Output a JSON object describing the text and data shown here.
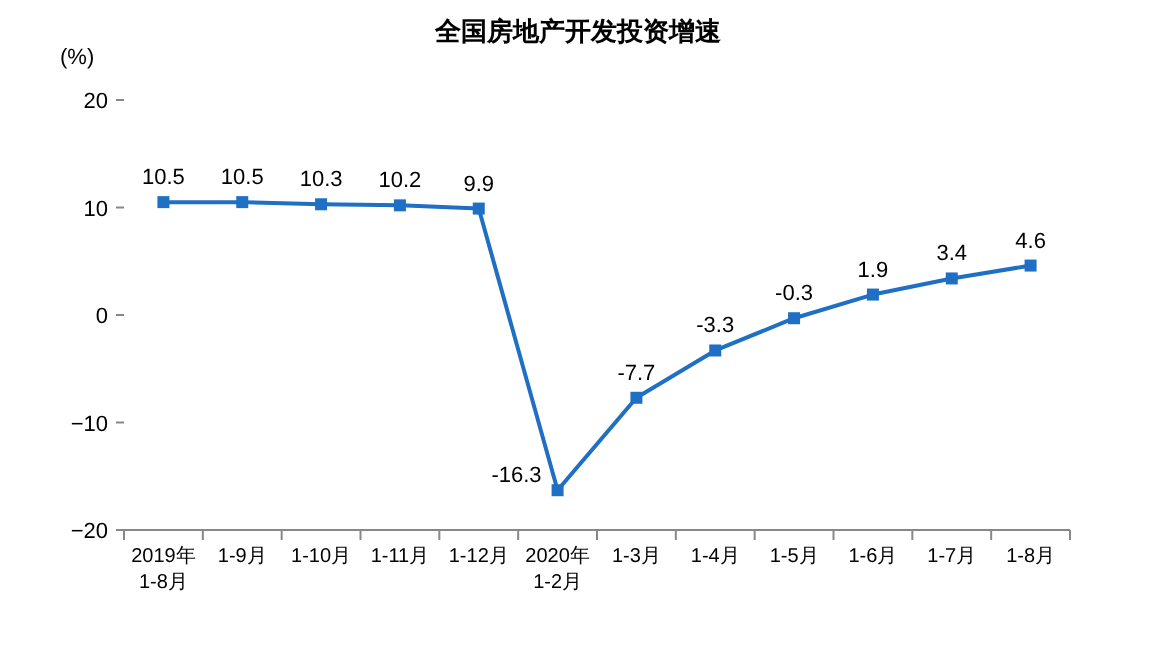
{
  "chart_data": {
    "type": "line",
    "title": "全国房地产开发投资增速",
    "ylabel": "(%)",
    "categories": [
      "2019年\n1-8月",
      "1-9月",
      "1-10月",
      "1-11月",
      "1-12月",
      "2020年\n1-2月",
      "1-3月",
      "1-4月",
      "1-5月",
      "1-6月",
      "1-7月",
      "1-8月"
    ],
    "series": [
      {
        "color": "#1f6fc4",
        "values": [
          10.5,
          10.5,
          10.3,
          10.2,
          9.9,
          -16.3,
          -7.7,
          -3.3,
          -0.3,
          1.9,
          3.4,
          4.6
        ]
      }
    ],
    "ylim": [
      -20,
      20
    ],
    "yticks": [
      -20,
      -10,
      0,
      10,
      20
    ],
    "data_labels": true,
    "marker": "square",
    "grid": false
  }
}
